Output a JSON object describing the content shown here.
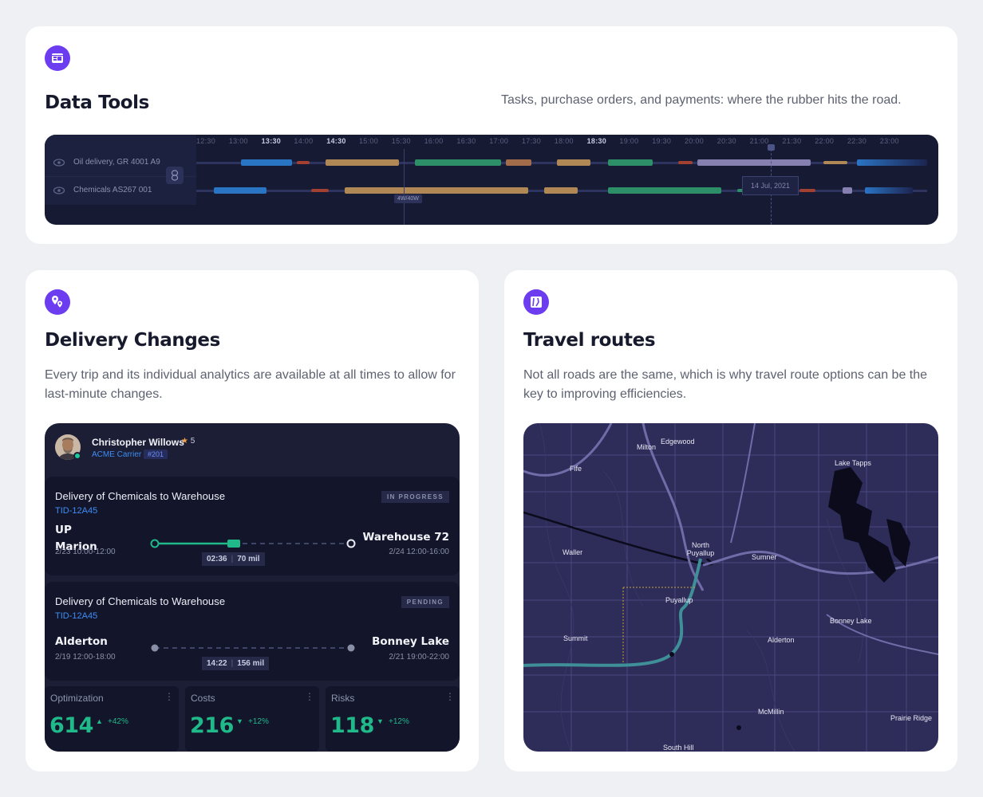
{
  "data_tools": {
    "title": "Data Tools",
    "description": "Tasks, purchase orders, and payments: where the rubber hits the road.",
    "icon": "dashboard-icon",
    "hours": [
      "12:30",
      "13:00",
      "13:30",
      "14:00",
      "14:30",
      "15:00",
      "15:30",
      "16:00",
      "16:30",
      "17:00",
      "17:30",
      "18:00",
      "18:30",
      "19:00",
      "19:30",
      "20:00",
      "20:30",
      "21:00",
      "21:30",
      "22:00",
      "22:30",
      "23:00"
    ],
    "bold_hours": [
      "13:30",
      "14:30",
      "18:30"
    ],
    "rows": [
      {
        "label": "Oil delivery, GR 4001 A9"
      },
      {
        "label": "Chemicals AS267 001"
      }
    ],
    "tag_label": "4W/40W",
    "date_label": "14 Jul, 2021"
  },
  "delivery": {
    "title": "Delivery Changes",
    "description": "Every trip and its individual analytics are available at all times to allow for last-minute changes.",
    "icon": "map-pins-icon",
    "driver": {
      "name": "Christopher Willows",
      "rating": "5",
      "company": "ACME Carrier",
      "badge": "#201"
    },
    "trips": [
      {
        "title": "Delivery of Chemicals to Warehouse",
        "id": "TID-12A45",
        "status": "IN PROGRESS",
        "from": "UP\nMarion",
        "from_line1": "UP",
        "from_line2": "Marion",
        "from_time": "2/23 10:00-12:00",
        "to": "Warehouse 72",
        "to_time": "2/24 12:00-16:00",
        "duration": "02:36",
        "distance": "70 mil",
        "progress": 0.45
      },
      {
        "title": "Delivery of Chemicals to Warehouse",
        "id": "TID-12A45",
        "status": "PENDING",
        "from": "Alderton",
        "from_time": "2/19 12:00-18:00",
        "to": "Bonney Lake",
        "to_time": "2/21 19:00-22:00",
        "duration": "14:22",
        "distance": "156 mil",
        "progress": 0
      }
    ],
    "metrics": [
      {
        "label": "Optimization",
        "value": "614",
        "change": "+42%",
        "direction": "up"
      },
      {
        "label": "Costs",
        "value": "216",
        "change": "+12%",
        "direction": "down"
      },
      {
        "label": "Risks",
        "value": "118",
        "change": "+12%",
        "direction": "down"
      }
    ]
  },
  "routes": {
    "title": "Travel routes",
    "description": "Not all roads are the same, which is why travel route options can be the key to improving efficiencies.",
    "icon": "map-icon",
    "places": [
      "Edgewood",
      "Milton",
      "Fife",
      "Lake Tapps",
      "North Puyallup",
      "Waller",
      "Sumner",
      "Puyallup",
      "Bonney Lake",
      "Summit",
      "Alderton",
      "McMillin",
      "Prairie Ridge",
      "South Hill"
    ]
  },
  "colors": {
    "accent": "#6c3cf0",
    "positive": "#1fb98a",
    "link": "#3d8df5",
    "panel": "#1b1e35",
    "map": "#2e2c59"
  }
}
